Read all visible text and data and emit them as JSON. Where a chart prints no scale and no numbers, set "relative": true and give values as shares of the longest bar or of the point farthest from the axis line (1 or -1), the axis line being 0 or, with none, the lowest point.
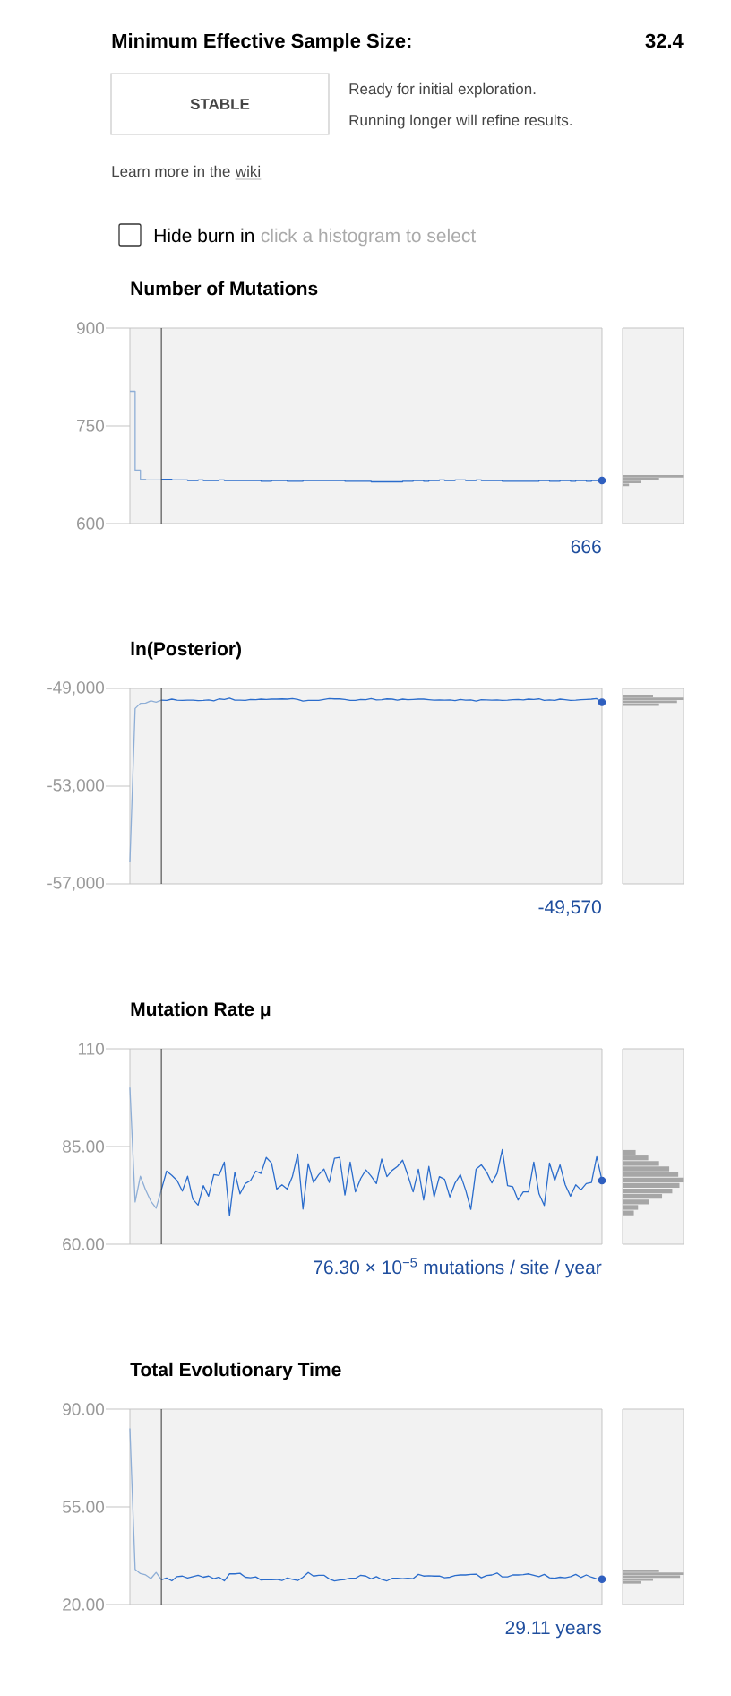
{
  "chart_data": [
    {
      "type": "other",
      "title": "Minimum Effective Sample Size:",
      "annotations": [
        "32.4",
        "STABLE",
        "Ready for initial exploration.",
        "Running longer will refine results.",
        "Learn more in the",
        "wiki",
        "Hide burn in",
        "click a histogram to select"
      ]
    },
    {
      "type": "step",
      "title": "Number of Mutations",
      "tick_labels": "y",
      "ylim": [
        600,
        900
      ],
      "yticks": [
        600,
        750,
        900
      ],
      "annotations": [
        "666"
      ],
      "categories": [
        null,
        null,
        null,
        null,
        null,
        null,
        null,
        null,
        null,
        null,
        null,
        null,
        null,
        null,
        null,
        null,
        null,
        null,
        null,
        null,
        null,
        null,
        null,
        null,
        null,
        null,
        null,
        null,
        null,
        null,
        null,
        null,
        null,
        null,
        null,
        null,
        null,
        null,
        null,
        null,
        null,
        null,
        null,
        null,
        null,
        null,
        null,
        null,
        null,
        null,
        null,
        null,
        null,
        null,
        null,
        null,
        null,
        null,
        null,
        null,
        null,
        null,
        null,
        null,
        null,
        null,
        null,
        null,
        null,
        null,
        null,
        null,
        null,
        null,
        null,
        null,
        null,
        null,
        null,
        null,
        null,
        null,
        null,
        null,
        null,
        null,
        null,
        null,
        null,
        null,
        null
      ],
      "series": [
        {
          "color": "#8eaed6",
          "values": [
            803,
            682,
            668,
            667,
            667,
            667,
            668,
            null,
            null,
            null,
            null,
            null,
            null,
            null,
            null,
            null,
            null,
            null,
            null,
            null,
            null,
            null,
            null,
            null,
            null,
            null,
            null,
            null,
            null,
            null,
            null,
            null,
            null,
            null,
            null,
            null,
            null,
            null,
            null,
            null,
            null,
            null,
            null,
            null,
            null,
            null,
            null,
            null,
            null,
            null,
            null,
            null,
            null,
            null,
            null,
            null,
            null,
            null,
            null,
            null,
            null,
            null,
            null,
            null,
            null,
            null,
            null,
            null,
            null,
            null,
            null,
            null,
            null,
            null,
            null,
            null,
            null,
            null,
            null,
            null,
            null,
            null,
            null,
            null,
            null,
            null,
            null,
            null,
            null,
            null,
            null
          ]
        },
        {
          "color": "#2a6ccc",
          "values": [
            null,
            null,
            null,
            null,
            null,
            null,
            668,
            668,
            667,
            667,
            667,
            666,
            666,
            667,
            666,
            666,
            666,
            667,
            666,
            666,
            666,
            666,
            666,
            666,
            666,
            665,
            665,
            666,
            666,
            666,
            665,
            665,
            665,
            666,
            666,
            666,
            666,
            666,
            666,
            666,
            666,
            665,
            665,
            665,
            665,
            665,
            664,
            664,
            664,
            664,
            664,
            664,
            665,
            665,
            666,
            666,
            665,
            666,
            666,
            667,
            666,
            666,
            667,
            667,
            666,
            666,
            667,
            666,
            666,
            666,
            666,
            665,
            665,
            665,
            665,
            665,
            665,
            665,
            666,
            666,
            665,
            665,
            666,
            666,
            665,
            666,
            666,
            665,
            666,
            666,
            666
          ]
        },
        {
          "type": "scatter",
          "color": "#2f5fbf",
          "values": [
            null,
            null,
            null,
            null,
            null,
            null,
            null,
            null,
            null,
            null,
            null,
            null,
            null,
            null,
            null,
            null,
            null,
            null,
            null,
            null,
            null,
            null,
            null,
            null,
            null,
            null,
            null,
            null,
            null,
            null,
            null,
            null,
            null,
            null,
            null,
            null,
            null,
            null,
            null,
            null,
            null,
            null,
            null,
            null,
            null,
            null,
            null,
            null,
            null,
            null,
            null,
            null,
            null,
            null,
            null,
            null,
            null,
            null,
            null,
            null,
            null,
            null,
            null,
            null,
            null,
            null,
            null,
            null,
            null,
            null,
            null,
            null,
            null,
            null,
            null,
            null,
            null,
            null,
            null,
            null,
            null,
            null,
            null,
            null,
            null,
            null,
            null,
            null,
            null,
            null,
            666
          ]
        }
      ]
    },
    {
      "type": "bar",
      "orientation": "horizontal",
      "relative": true,
      "color": "#a6a6a6",
      "categories": [
        null,
        null,
        null,
        null
      ],
      "values": [
        1,
        0.6,
        0.3,
        0.1
      ]
    },
    {
      "type": "line",
      "title": "ln(Posterior)",
      "tick_labels": "y",
      "ylim": [
        -57000,
        -49000
      ],
      "yticks": [
        {
          "value": -57000,
          "label": "-57,000"
        },
        {
          "value": -53000,
          "label": "-53,000"
        },
        {
          "value": -49000,
          "label": "-49,000"
        }
      ],
      "annotations": [
        "-49,570"
      ],
      "categories": [
        null,
        null,
        null,
        null,
        null,
        null,
        null,
        null,
        null,
        null,
        null,
        null,
        null,
        null,
        null,
        null,
        null,
        null,
        null,
        null,
        null,
        null,
        null,
        null,
        null,
        null,
        null,
        null,
        null,
        null,
        null,
        null,
        null,
        null,
        null,
        null,
        null,
        null,
        null,
        null,
        null,
        null,
        null,
        null,
        null,
        null,
        null,
        null,
        null,
        null,
        null,
        null,
        null,
        null,
        null,
        null,
        null,
        null,
        null,
        null,
        null,
        null,
        null,
        null,
        null,
        null,
        null,
        null,
        null,
        null,
        null,
        null,
        null,
        null,
        null,
        null,
        null,
        null,
        null,
        null,
        null,
        null,
        null,
        null,
        null,
        null,
        null,
        null,
        null,
        null,
        null
      ],
      "series": [
        {
          "color": "#8eaed6",
          "values": [
            -56120,
            -49820,
            -49610,
            -49600,
            -49510,
            -49560,
            -49480,
            null,
            null,
            null,
            null,
            null,
            null,
            null,
            null,
            null,
            null,
            null,
            null,
            null,
            null,
            null,
            null,
            null,
            null,
            null,
            null,
            null,
            null,
            null,
            null,
            null,
            null,
            null,
            null,
            null,
            null,
            null,
            null,
            null,
            null,
            null,
            null,
            null,
            null,
            null,
            null,
            null,
            null,
            null,
            null,
            null,
            null,
            null,
            null,
            null,
            null,
            null,
            null,
            null,
            null,
            null,
            null,
            null,
            null,
            null,
            null,
            null,
            null,
            null,
            null,
            null,
            null,
            null,
            null,
            null,
            null,
            null,
            null,
            null,
            null,
            null,
            null,
            null,
            null,
            null,
            null,
            null,
            null,
            null,
            null
          ]
        },
        {
          "color": "#2a6ccc",
          "values": [
            null,
            null,
            null,
            null,
            null,
            null,
            -49480,
            -49490,
            -49440,
            -49480,
            -49490,
            -49480,
            -49480,
            -49500,
            -49490,
            -49470,
            -49510,
            -49430,
            -49450,
            -49400,
            -49480,
            -49480,
            -49490,
            -49450,
            -49460,
            -49440,
            -49450,
            -49440,
            -49440,
            -49430,
            -49440,
            -49420,
            -49450,
            -49520,
            -49490,
            -49490,
            -49490,
            -49450,
            -49420,
            -49430,
            -49430,
            -49450,
            -49490,
            -49490,
            -49450,
            -49460,
            -49420,
            -49470,
            -49460,
            -49430,
            -49440,
            -49480,
            -49440,
            -49460,
            -49450,
            -49440,
            -49440,
            -49460,
            -49480,
            -49470,
            -49480,
            -49470,
            -49500,
            -49450,
            -49480,
            -49470,
            -49520,
            -49460,
            -49470,
            -49480,
            -49470,
            -49490,
            -49480,
            -49460,
            -49450,
            -49470,
            -49440,
            -49450,
            -49430,
            -49490,
            -49470,
            -49490,
            -49440,
            -49460,
            -49490,
            -49480,
            -49460,
            -49450,
            -49440,
            -49420,
            -49570
          ]
        },
        {
          "type": "scatter",
          "color": "#2f5fbf",
          "values": [
            null,
            null,
            null,
            null,
            null,
            null,
            null,
            null,
            null,
            null,
            null,
            null,
            null,
            null,
            null,
            null,
            null,
            null,
            null,
            null,
            null,
            null,
            null,
            null,
            null,
            null,
            null,
            null,
            null,
            null,
            null,
            null,
            null,
            null,
            null,
            null,
            null,
            null,
            null,
            null,
            null,
            null,
            null,
            null,
            null,
            null,
            null,
            null,
            null,
            null,
            null,
            null,
            null,
            null,
            null,
            null,
            null,
            null,
            null,
            null,
            null,
            null,
            null,
            null,
            null,
            null,
            null,
            null,
            null,
            null,
            null,
            null,
            null,
            null,
            null,
            null,
            null,
            null,
            null,
            null,
            null,
            null,
            null,
            null,
            null,
            null,
            null,
            null,
            null,
            null,
            -49570
          ]
        }
      ]
    },
    {
      "type": "bar",
      "orientation": "horizontal",
      "relative": true,
      "color": "#a6a6a6",
      "categories": [
        null,
        null,
        null,
        null
      ],
      "values": [
        0.5,
        1,
        0.9,
        0.6
      ]
    },
    {
      "type": "line",
      "title": "Mutation Rate μ",
      "tick_labels": "y",
      "ylim": [
        60,
        110
      ],
      "yticks": [
        {
          "value": 60,
          "label": "60.00"
        },
        {
          "value": 85,
          "label": "85.00"
        },
        110
      ],
      "annotations": [
        "76.30 × 10$^{−5}$ mutations / site / year"
      ],
      "categories": [
        null,
        null,
        null,
        null,
        null,
        null,
        null,
        null,
        null,
        null,
        null,
        null,
        null,
        null,
        null,
        null,
        null,
        null,
        null,
        null,
        null,
        null,
        null,
        null,
        null,
        null,
        null,
        null,
        null,
        null,
        null,
        null,
        null,
        null,
        null,
        null,
        null,
        null,
        null,
        null,
        null,
        null,
        null,
        null,
        null,
        null,
        null,
        null,
        null,
        null,
        null,
        null,
        null,
        null,
        null,
        null,
        null,
        null,
        null,
        null,
        null,
        null,
        null,
        null,
        null,
        null,
        null,
        null,
        null,
        null,
        null,
        null,
        null,
        null,
        null,
        null,
        null,
        null,
        null,
        null,
        null,
        null,
        null,
        null,
        null,
        null,
        null,
        null,
        null,
        null,
        null
      ],
      "series": [
        {
          "color": "#8eaed6",
          "values": [
            100.1,
            70.8,
            77.4,
            73.9,
            71.0,
            69.2,
            73.9,
            null,
            null,
            null,
            null,
            null,
            null,
            null,
            null,
            null,
            null,
            null,
            null,
            null,
            null,
            null,
            null,
            null,
            null,
            null,
            null,
            null,
            null,
            null,
            null,
            null,
            null,
            null,
            null,
            null,
            null,
            null,
            null,
            null,
            null,
            null,
            null,
            null,
            null,
            null,
            null,
            null,
            null,
            null,
            null,
            null,
            null,
            null,
            null,
            null,
            null,
            null,
            null,
            null,
            null,
            null,
            null,
            null,
            null,
            null,
            null,
            null,
            null,
            null,
            null,
            null,
            null,
            null,
            null,
            null,
            null,
            null,
            null,
            null,
            null,
            null,
            null,
            null,
            null,
            null,
            null,
            null,
            null,
            null,
            null
          ]
        },
        {
          "color": "#2a6ccc",
          "values": [
            null,
            null,
            null,
            null,
            null,
            null,
            73.9,
            78.7,
            77.6,
            76.3,
            73.6,
            77.4,
            71.5,
            70.0,
            75.0,
            72.3,
            77.8,
            77.6,
            81.0,
            67.3,
            78.4,
            72.9,
            75.5,
            76.3,
            78.7,
            78.1,
            82.2,
            80.8,
            74.1,
            75.2,
            74.1,
            77.4,
            83.1,
            69.0,
            80.6,
            75.8,
            77.8,
            79.2,
            75.8,
            82.0,
            82.2,
            72.6,
            81.0,
            73.4,
            76.8,
            79.0,
            77.4,
            75.5,
            81.8,
            77.3,
            78.9,
            79.9,
            81.5,
            77.6,
            73.4,
            79.2,
            71.3,
            79.9,
            72.1,
            77.3,
            76.6,
            72.1,
            75.7,
            77.8,
            73.9,
            68.9,
            79.2,
            80.3,
            78.5,
            75.7,
            78.1,
            84.2,
            75.0,
            74.7,
            71.3,
            73.4,
            73.4,
            81.0,
            72.9,
            69.9,
            80.8,
            76.3,
            80.3,
            75.2,
            72.3,
            75.2,
            73.9,
            75.5,
            75.8,
            82.4,
            76.3
          ]
        },
        {
          "type": "scatter",
          "color": "#2f5fbf",
          "values": [
            null,
            null,
            null,
            null,
            null,
            null,
            null,
            null,
            null,
            null,
            null,
            null,
            null,
            null,
            null,
            null,
            null,
            null,
            null,
            null,
            null,
            null,
            null,
            null,
            null,
            null,
            null,
            null,
            null,
            null,
            null,
            null,
            null,
            null,
            null,
            null,
            null,
            null,
            null,
            null,
            null,
            null,
            null,
            null,
            null,
            null,
            null,
            null,
            null,
            null,
            null,
            null,
            null,
            null,
            null,
            null,
            null,
            null,
            null,
            null,
            null,
            null,
            null,
            null,
            null,
            null,
            null,
            null,
            null,
            null,
            null,
            null,
            null,
            null,
            null,
            null,
            null,
            null,
            null,
            null,
            null,
            null,
            null,
            null,
            null,
            null,
            null,
            null,
            null,
            null,
            76.3
          ]
        }
      ]
    },
    {
      "type": "bar",
      "orientation": "horizontal",
      "relative": true,
      "color": "#a6a6a6",
      "categories": [
        null,
        null,
        null,
        null,
        null,
        null,
        null,
        null,
        null,
        null,
        null,
        null
      ],
      "values": [
        0.21,
        0.42,
        0.6,
        0.77,
        0.92,
        1,
        0.94,
        0.82,
        0.65,
        0.44,
        0.25,
        0.18
      ]
    },
    {
      "type": "line",
      "title": "Total Evolutionary Time",
      "tick_labels": "y",
      "ylim": [
        20,
        90
      ],
      "yticks": [
        {
          "value": 20,
          "label": "20.00"
        },
        {
          "value": 55,
          "label": "55.00"
        },
        {
          "value": 90,
          "label": "90.00"
        }
      ],
      "annotations": [
        "29.11 years"
      ],
      "categories": [
        null,
        null,
        null,
        null,
        null,
        null,
        null,
        null,
        null,
        null,
        null,
        null,
        null,
        null,
        null,
        null,
        null,
        null,
        null,
        null,
        null,
        null,
        null,
        null,
        null,
        null,
        null,
        null,
        null,
        null,
        null,
        null,
        null,
        null,
        null,
        null,
        null,
        null,
        null,
        null,
        null,
        null,
        null,
        null,
        null,
        null,
        null,
        null,
        null,
        null,
        null,
        null,
        null,
        null,
        null,
        null,
        null,
        null,
        null,
        null,
        null,
        null,
        null,
        null,
        null,
        null,
        null,
        null,
        null,
        null,
        null,
        null,
        null,
        null,
        null,
        null,
        null,
        null,
        null,
        null,
        null,
        null,
        null,
        null,
        null,
        null,
        null,
        null,
        null,
        null,
        null
      ],
      "series": [
        {
          "color": "#8eaed6",
          "values": [
            83.1,
            32.6,
            31.1,
            30.6,
            29.3,
            31.5,
            28.9,
            null,
            null,
            null,
            null,
            null,
            null,
            null,
            null,
            null,
            null,
            null,
            null,
            null,
            null,
            null,
            null,
            null,
            null,
            null,
            null,
            null,
            null,
            null,
            null,
            null,
            null,
            null,
            null,
            null,
            null,
            null,
            null,
            null,
            null,
            null,
            null,
            null,
            null,
            null,
            null,
            null,
            null,
            null,
            null,
            null,
            null,
            null,
            null,
            null,
            null,
            null,
            null,
            null,
            null,
            null,
            null,
            null,
            null,
            null,
            null,
            null,
            null,
            null,
            null,
            null,
            null,
            null,
            null,
            null,
            null,
            null,
            null,
            null,
            null,
            null,
            null,
            null,
            null,
            null,
            null,
            null,
            null,
            null,
            null
          ]
        },
        {
          "color": "#2a6ccc",
          "values": [
            null,
            null,
            null,
            null,
            null,
            null,
            28.9,
            29.5,
            28.5,
            30.0,
            30.2,
            29.5,
            30.0,
            30.5,
            29.8,
            30.2,
            29.3,
            29.8,
            28.5,
            31.0,
            31.0,
            31.2,
            29.8,
            29.6,
            29.9,
            28.8,
            29.0,
            28.9,
            29.0,
            28.6,
            29.5,
            29.0,
            28.6,
            29.8,
            31.5,
            30.2,
            30.5,
            30.5,
            29.2,
            28.5,
            28.8,
            29.0,
            29.4,
            29.4,
            30.5,
            30.2,
            29.2,
            30.0,
            29.0,
            28.5,
            29.4,
            29.4,
            29.3,
            29.4,
            29.3,
            30.8,
            30.2,
            30.3,
            30.2,
            30.2,
            29.6,
            29.8,
            30.4,
            30.6,
            30.6,
            30.8,
            30.9,
            29.6,
            30.4,
            30.6,
            31.3,
            29.9,
            29.9,
            30.6,
            30.6,
            30.7,
            31.0,
            30.5,
            30.0,
            30.8,
            29.6,
            29.4,
            29.8,
            29.6,
            30.0,
            30.8,
            29.7,
            30.6,
            29.8,
            29.2,
            29.11
          ]
        },
        {
          "type": "scatter",
          "color": "#2f5fbf",
          "values": [
            null,
            null,
            null,
            null,
            null,
            null,
            null,
            null,
            null,
            null,
            null,
            null,
            null,
            null,
            null,
            null,
            null,
            null,
            null,
            null,
            null,
            null,
            null,
            null,
            null,
            null,
            null,
            null,
            null,
            null,
            null,
            null,
            null,
            null,
            null,
            null,
            null,
            null,
            null,
            null,
            null,
            null,
            null,
            null,
            null,
            null,
            null,
            null,
            null,
            null,
            null,
            null,
            null,
            null,
            null,
            null,
            null,
            null,
            null,
            null,
            null,
            null,
            null,
            null,
            null,
            null,
            null,
            null,
            null,
            null,
            null,
            null,
            null,
            null,
            null,
            null,
            null,
            null,
            null,
            null,
            null,
            null,
            null,
            null,
            null,
            null,
            null,
            null,
            null,
            null,
            29.11
          ]
        }
      ]
    },
    {
      "type": "bar",
      "orientation": "horizontal",
      "relative": true,
      "color": "#a6a6a6",
      "categories": [
        null,
        null,
        null,
        null,
        null
      ],
      "values": [
        0.6,
        1,
        0.95,
        0.5,
        0.3
      ]
    }
  ]
}
